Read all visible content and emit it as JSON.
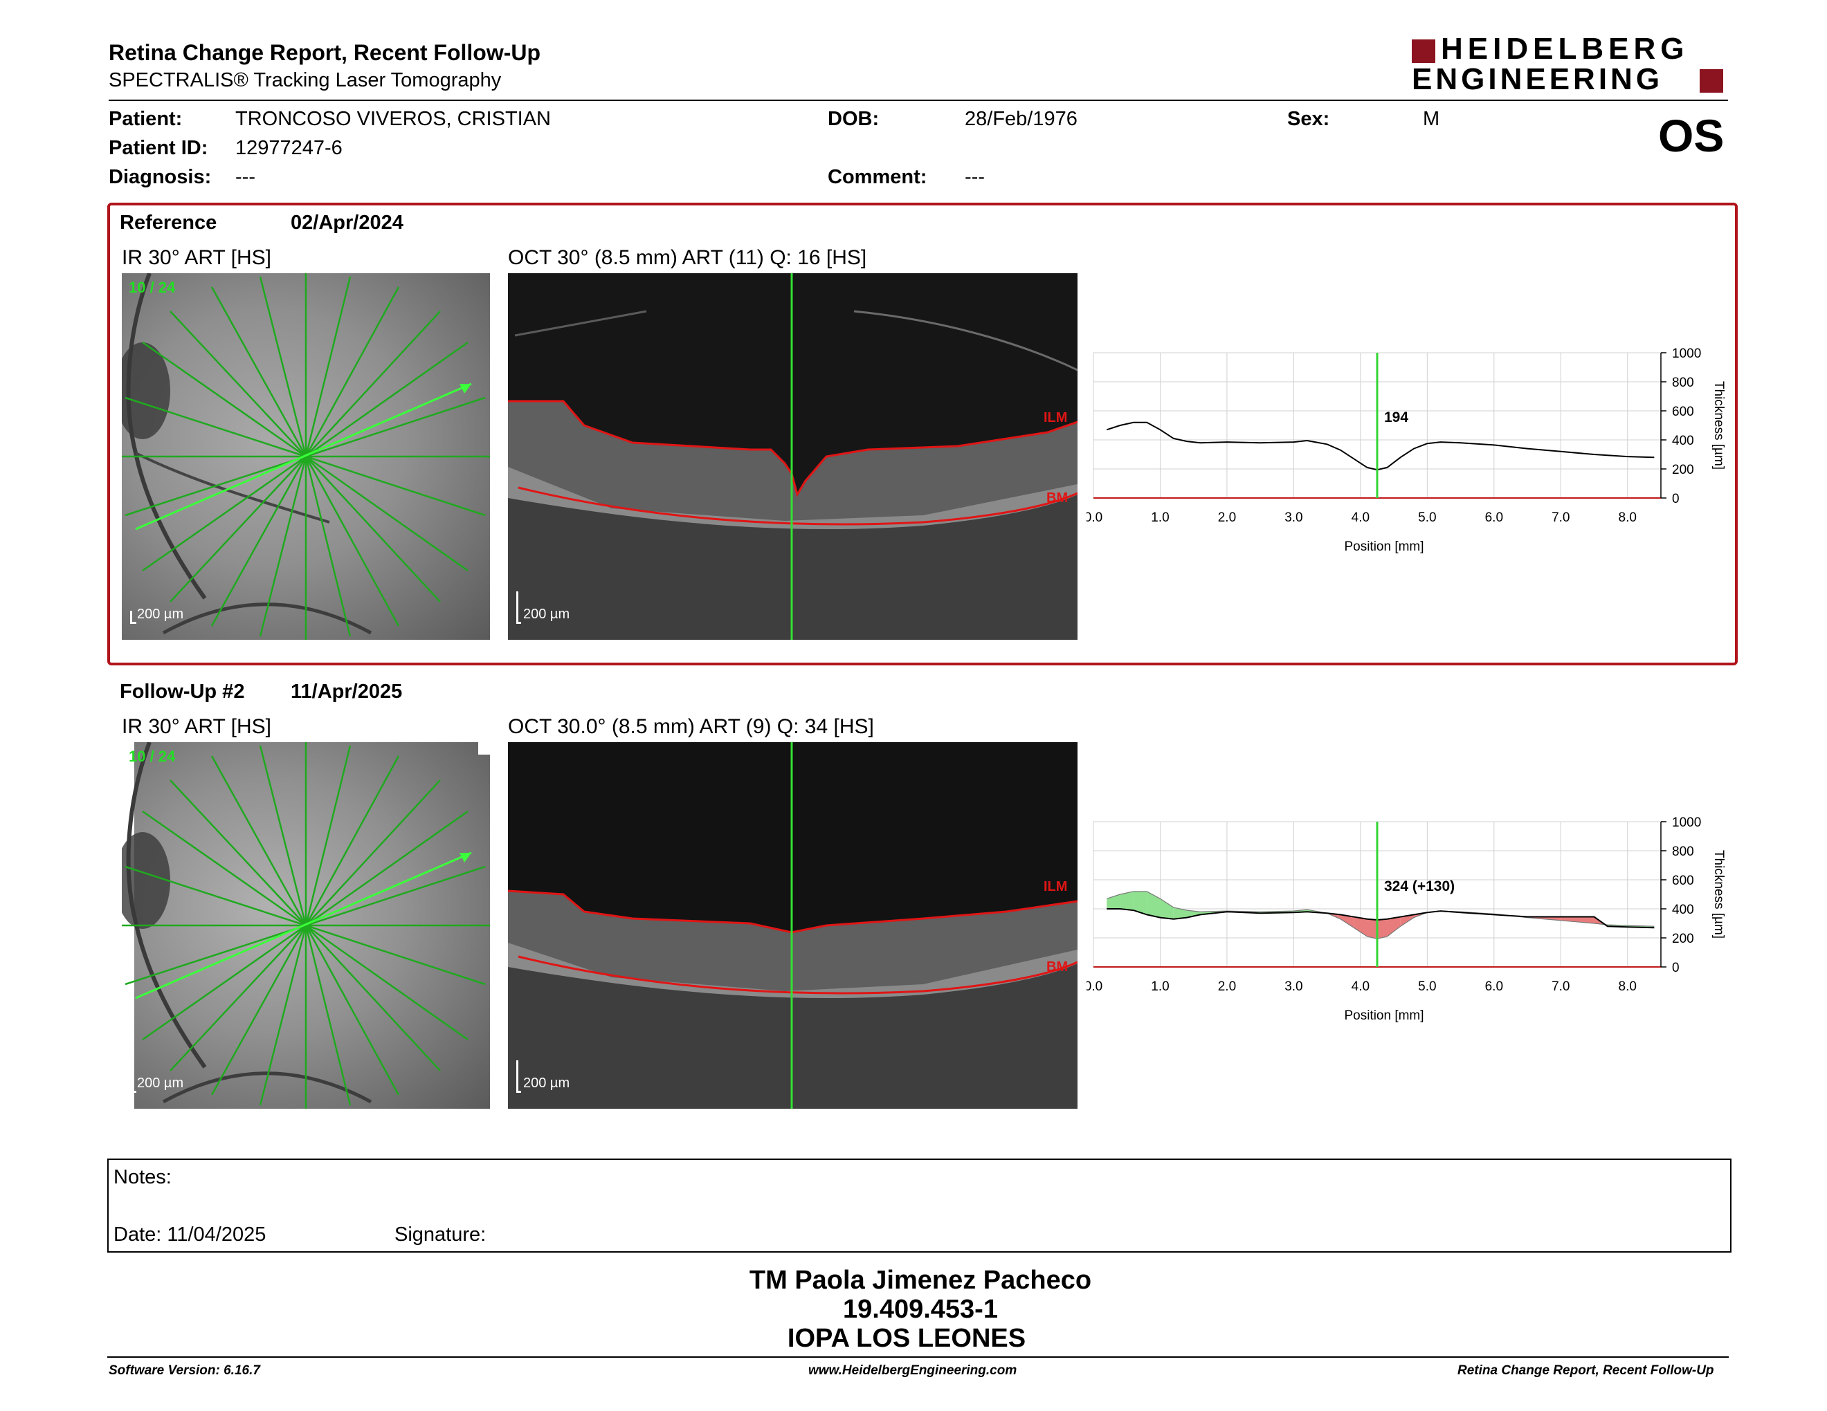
{
  "header": {
    "title": "Retina Change Report, Recent Follow-Up",
    "subtitle": "SPECTRALIS® Tracking Laser Tomography",
    "logo_line1": "HEIDELBERG",
    "logo_line2": "ENGINEERING",
    "eye": "OS",
    "brand_color": "#8b1420"
  },
  "patient": {
    "patient_label": "Patient:",
    "patient_value": "TRONCOSO VIVEROS, CRISTIAN",
    "id_label": "Patient ID:",
    "id_value": "12977247-6",
    "diagnosis_label": "Diagnosis:",
    "diagnosis_value": "---",
    "dob_label": "DOB:",
    "dob_value": "28/Feb/1976",
    "comment_label": "Comment:",
    "comment_value": "---",
    "sex_label": "Sex:",
    "sex_value": "M"
  },
  "reference": {
    "label": "Reference",
    "date": "02/Apr/2024",
    "ir_caption": "IR 30° ART [HS]",
    "ir_overlay": "10 / 24",
    "oct_caption": "OCT 30° (8.5 mm) ART (11) Q: 16 [HS]",
    "scale": "200 µm",
    "ilm": "ILM",
    "bm": "BM"
  },
  "followup": {
    "label": "Follow-Up #2",
    "date": "11/Apr/2025",
    "ir_caption": "IR 30° ART [HS]",
    "ir_overlay": "10 / 24",
    "oct_caption": "OCT 30.0° (8.5 mm) ART (9) Q: 34 [HS]",
    "scale": "200 µm",
    "ilm": "ILM",
    "bm": "BM"
  },
  "chart_data": [
    {
      "type": "line",
      "xlabel": "Position [mm]",
      "ylabel": "Thickness [µm]",
      "xlim": [
        0.0,
        8.5
      ],
      "ylim": [
        0,
        1000
      ],
      "xticks": [
        "0.0",
        "1.0",
        "2.0",
        "3.0",
        "4.0",
        "5.0",
        "6.0",
        "7.0",
        "8.0"
      ],
      "yticks": [
        "0",
        "200",
        "400",
        "600",
        "800",
        "1000"
      ],
      "cursor_x": 4.25,
      "cursor_label": "194",
      "grid": true,
      "series": [
        {
          "x": [
            0.2,
            0.4,
            0.6,
            0.8,
            1.0,
            1.2,
            1.4,
            1.6,
            2.0,
            2.5,
            3.0,
            3.2,
            3.5,
            3.7,
            3.9,
            4.1,
            4.25,
            4.4,
            4.6,
            4.8,
            5.0,
            5.2,
            5.5,
            6.0,
            6.5,
            7.0,
            7.5,
            8.0,
            8.4
          ],
          "values": [
            470,
            500,
            520,
            520,
            470,
            410,
            390,
            380,
            385,
            380,
            385,
            395,
            370,
            330,
            270,
            210,
            194,
            210,
            280,
            340,
            375,
            385,
            380,
            365,
            340,
            320,
            300,
            285,
            280
          ]
        }
      ]
    },
    {
      "type": "area",
      "xlabel": "Position [mm]",
      "ylabel": "Thickness [µm]",
      "xlim": [
        0.0,
        8.5
      ],
      "ylim": [
        0,
        1000
      ],
      "xticks": [
        "0.0",
        "1.0",
        "2.0",
        "3.0",
        "4.0",
        "5.0",
        "6.0",
        "7.0",
        "8.0"
      ],
      "yticks": [
        "0",
        "200",
        "400",
        "600",
        "800",
        "1000"
      ],
      "cursor_x": 4.25,
      "cursor_label": "324 (+130)",
      "grid": true,
      "colors": {
        "increase": "#8fe08f",
        "decrease": "#e87b7b"
      },
      "series": [
        {
          "x": [
            0.2,
            0.4,
            0.6,
            0.8,
            1.0,
            1.2,
            1.4,
            1.6,
            2.0,
            2.5,
            3.0,
            3.2,
            3.5,
            3.7,
            3.9,
            4.1,
            4.25,
            4.4,
            4.6,
            4.8,
            5.0,
            5.2,
            5.5,
            6.0,
            6.5,
            7.0,
            7.5,
            7.7,
            8.0,
            8.4
          ],
          "values": [
            470,
            500,
            520,
            520,
            470,
            410,
            390,
            380,
            385,
            380,
            385,
            395,
            370,
            330,
            270,
            210,
            194,
            210,
            280,
            340,
            375,
            385,
            380,
            365,
            340,
            320,
            300,
            290,
            285,
            280
          ]
        },
        {
          "x": [
            0.2,
            0.4,
            0.6,
            0.8,
            1.0,
            1.2,
            1.4,
            1.6,
            2.0,
            2.5,
            3.0,
            3.2,
            3.5,
            3.7,
            3.9,
            4.1,
            4.25,
            4.4,
            4.6,
            4.8,
            5.0,
            5.2,
            5.5,
            6.0,
            6.5,
            7.0,
            7.5,
            7.7,
            8.0,
            8.4
          ],
          "values": [
            400,
            400,
            390,
            360,
            340,
            330,
            340,
            360,
            380,
            370,
            375,
            380,
            370,
            360,
            345,
            330,
            324,
            330,
            345,
            360,
            375,
            385,
            375,
            360,
            345,
            345,
            345,
            280,
            275,
            270
          ]
        }
      ]
    }
  ],
  "notes": {
    "notes_label": "Notes:",
    "date_label": "Date: 11/04/2025",
    "signature_label": "Signature:"
  },
  "signoff": {
    "name": "TM Paola Jimenez Pacheco",
    "rut": "19.409.453-1",
    "place": "IOPA LOS LEONES"
  },
  "footer": {
    "software": "Software Version: 6.16.7",
    "website": "www.HeidelbergEngineering.com",
    "report": "Retina Change Report, Recent Follow-Up"
  }
}
